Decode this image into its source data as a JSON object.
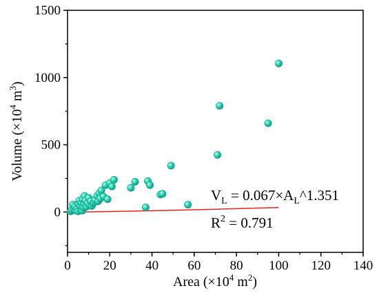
{
  "chart_data": {
    "type": "scatter",
    "xlabel": {
      "main": "Area (×10",
      "sup": "4",
      "unit": " m",
      "unit_sup": "2",
      "close": ")"
    },
    "ylabel": {
      "main": "Volume (×10",
      "sup": "4",
      "unit": " m",
      "unit_sup": "3",
      "close": ")"
    },
    "xlim": [
      0,
      140
    ],
    "ylim": [
      -300,
      1500
    ],
    "x_ticks": [
      0,
      20,
      40,
      60,
      80,
      100,
      120,
      140
    ],
    "x_tick_labels": [
      "0",
      "20",
      "40",
      "60",
      "80",
      "100",
      "120",
      "140"
    ],
    "y_ticks": [
      0,
      500,
      1000,
      1500
    ],
    "y_tick_labels": [
      "0",
      "500",
      "1000",
      "1500"
    ],
    "grid": false,
    "legend": "none",
    "marker_color": "#2ed4b4",
    "fit_color": "#e8231b",
    "points": [
      [
        1.5,
        5
      ],
      [
        2,
        15
      ],
      [
        2.5,
        55
      ],
      [
        3,
        25
      ],
      [
        3.5,
        40
      ],
      [
        4,
        10
      ],
      [
        4.5,
        30
      ],
      [
        5,
        5
      ],
      [
        5,
        60
      ],
      [
        5.5,
        85
      ],
      [
        6,
        20
      ],
      [
        6,
        45
      ],
      [
        6.5,
        70
      ],
      [
        7,
        10
      ],
      [
        7,
        95
      ],
      [
        7.5,
        35
      ],
      [
        8,
        60
      ],
      [
        8,
        120
      ],
      [
        8.5,
        85
      ],
      [
        9,
        40
      ],
      [
        9.5,
        65
      ],
      [
        10,
        105
      ],
      [
        10.5,
        55
      ],
      [
        11,
        80
      ],
      [
        11.5,
        45
      ],
      [
        12,
        65
      ],
      [
        12.5,
        70
      ],
      [
        13,
        90
      ],
      [
        14,
        120
      ],
      [
        14.5,
        80
      ],
      [
        15,
        140
      ],
      [
        15.5,
        100
      ],
      [
        16,
        160
      ],
      [
        17,
        115
      ],
      [
        18,
        200
      ],
      [
        19,
        95
      ],
      [
        20,
        215
      ],
      [
        21,
        190
      ],
      [
        22,
        240
      ],
      [
        30,
        180
      ],
      [
        32,
        225
      ],
      [
        37,
        35
      ],
      [
        38,
        230
      ],
      [
        39,
        200
      ],
      [
        44,
        130
      ],
      [
        45,
        135
      ],
      [
        49,
        345
      ],
      [
        57,
        55
      ],
      [
        71,
        425
      ],
      [
        72,
        790
      ],
      [
        95,
        660
      ],
      [
        100,
        1105
      ]
    ],
    "fit": {
      "a": 0.067,
      "b": 1.351,
      "x_range": [
        0,
        100
      ]
    },
    "annotations": {
      "equation": {
        "v": "V",
        "v_sub": "L",
        "mid": " = 0.067×A",
        "a_sub": "L",
        "tail": "^1.351"
      },
      "r2": {
        "r": "R",
        "sup": "2",
        "tail": " = 0.791"
      }
    }
  }
}
